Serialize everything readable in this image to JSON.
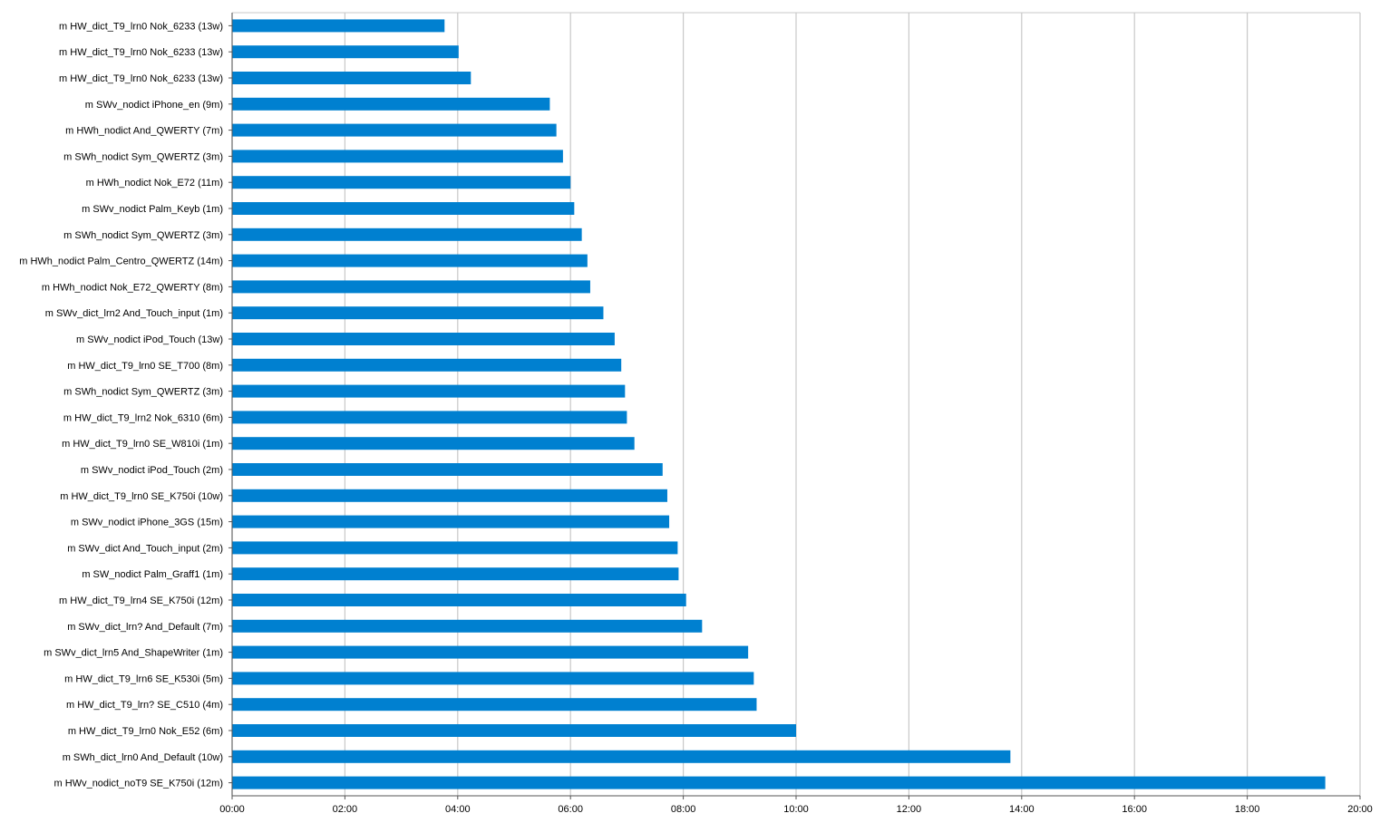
{
  "chart_data": {
    "type": "bar",
    "orientation": "horizontal",
    "title": "",
    "xlabel": "",
    "ylabel": "",
    "x_unit": "minutes:seconds",
    "xlim": [
      0,
      1200
    ],
    "x_ticks": [
      0,
      120,
      240,
      360,
      480,
      600,
      720,
      840,
      960,
      1080,
      1200
    ],
    "x_tick_labels": [
      "00:00",
      "02:00",
      "04:00",
      "06:00",
      "08:00",
      "10:00",
      "12:00",
      "14:00",
      "16:00",
      "18:00",
      "20:00"
    ],
    "grid": "vertical",
    "bar_color": "#0080d0",
    "categories": [
      "m HW_dict_T9_lrn0 Nok_6233 (13w)",
      "m HW_dict_T9_lrn0 Nok_6233 (13w)",
      "m HW_dict_T9_lrn0 Nok_6233 (13w)",
      "m SWv_nodict iPhone_en (9m)",
      "m HWh_nodict And_QWERTY (7m)",
      "m SWh_nodict Sym_QWERTZ (3m)",
      "m HWh_nodict Nok_E72 (11m)",
      "m SWv_nodict Palm_Keyb (1m)",
      "m SWh_nodict Sym_QWERTZ (3m)",
      "m HWh_nodict Palm_Centro_QWERTZ (14m)",
      "m HWh_nodict Nok_E72_QWERTY (8m)",
      "m SWv_dict_lrn2 And_Touch_input (1m)",
      "m SWv_nodict iPod_Touch (13w)",
      "m HW_dict_T9_lrn0 SE_T700 (8m)",
      "m SWh_nodict Sym_QWERTZ (3m)",
      "m HW_dict_T9_lrn2 Nok_6310 (6m)",
      "m HW_dict_T9_lrn0 SE_W810i (1m)",
      "m SWv_nodict iPod_Touch (2m)",
      "m HW_dict_T9_lrn0 SE_K750i (10w)",
      "m SWv_nodict iPhone_3GS (15m)",
      "m SWv_dict And_Touch_input (2m)",
      "m SW_nodict Palm_Graff1 (1m)",
      "m HW_dict_T9_lrn4 SE_K750i (12m)",
      "m SWv_dict_lrn? And_Default (7m)",
      "m SWv_dict_lrn5 And_ShapeWriter (1m)",
      "m HW_dict_T9_lrn6 SE_K530i (5m)",
      "m HW_dict_T9_lrn? SE_C510 (4m)",
      "m HW_dict_T9_lrn0 Nok_E52 (6m)",
      "m SWh_dict_lrn0 And_Default (10w)",
      "m HWv_nodict_noT9 SE_K750i (12m)"
    ],
    "values": [
      226,
      241,
      254,
      338,
      345,
      352,
      360,
      364,
      372,
      378,
      381,
      395,
      407,
      414,
      418,
      420,
      428,
      458,
      463,
      465,
      474,
      475,
      483,
      500,
      549,
      555,
      558,
      600,
      828,
      1163
    ]
  }
}
